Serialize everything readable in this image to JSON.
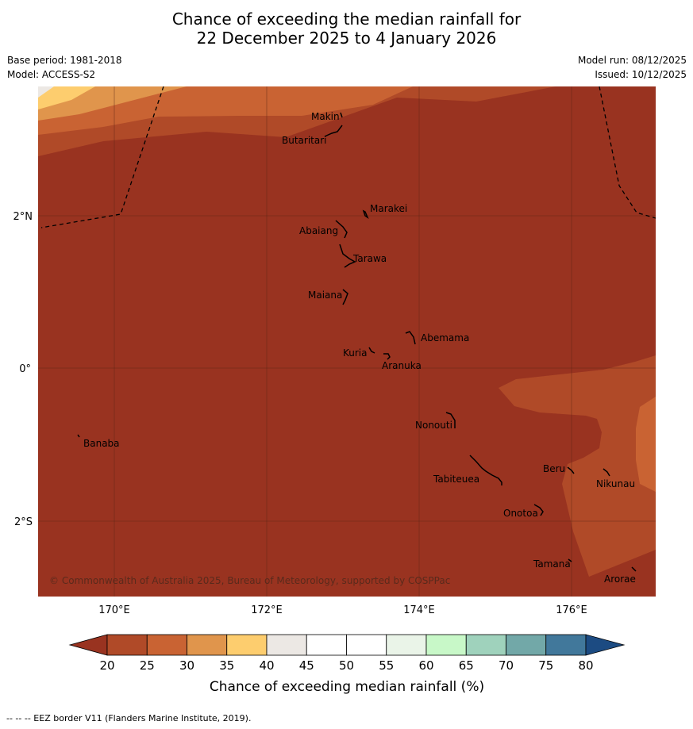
{
  "title": {
    "line1": "Chance of exceeding the median rainfall for",
    "line2": "22 December 2025 to 4 January 2026"
  },
  "meta": {
    "base_period": "Base period: 1981-2018",
    "model": "Model: ACCESS-S2",
    "model_run": "Model run: 08/12/2025",
    "issued": "Issued: 10/12/2025"
  },
  "map": {
    "lon_labels": [
      "170°E",
      "172°E",
      "174°E",
      "176°E"
    ],
    "lat_labels": [
      "2°N",
      "0°",
      "2°S"
    ],
    "copyright": "© Commonwealth of Australia 2025, Bureau of Meteorology, supported by COSPPac",
    "islands": [
      "Makin",
      "Butaritari",
      "Marakei",
      "Abaiang",
      "Tarawa",
      "Maiana",
      "Abemama",
      "Kuria",
      "Aranuka",
      "Banaba",
      "Nonouti",
      "Beru",
      "Nikunau",
      "Tabiteuea",
      "Onotoa",
      "Tamana",
      "Arorae"
    ]
  },
  "colorbar": {
    "label": "Chance of exceeding median rainfall (%)",
    "ticks": [
      "20",
      "25",
      "30",
      "35",
      "40",
      "45",
      "50",
      "55",
      "60",
      "65",
      "70",
      "75",
      "80"
    ],
    "colors": [
      "#993320",
      "#b04a28",
      "#c96333",
      "#e0954c",
      "#fdcd6e",
      "#ece8e4",
      "#ffffff",
      "#ffffff",
      "#eaf4e8",
      "#c8f8c8",
      "#9fd2bc",
      "#72a8a8",
      "#41789b",
      "#1c4b82"
    ]
  },
  "footer": "--  --  -- EEZ border V11 (Flanders Marine Institute, 2019)."
}
